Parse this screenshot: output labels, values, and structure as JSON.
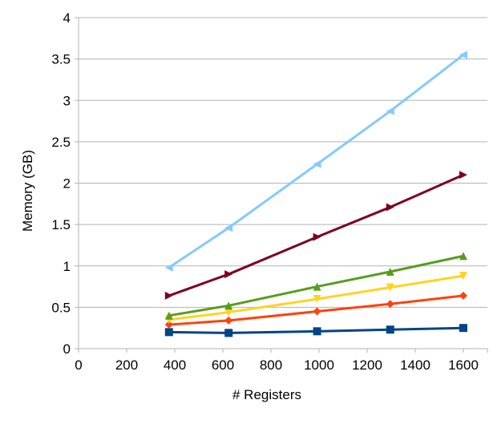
{
  "chart_data": {
    "type": "line",
    "title": "",
    "xlabel": "# Registers",
    "ylabel": "Memory (GB)",
    "xlim": [
      0,
      1700
    ],
    "ylim": [
      0,
      4
    ],
    "xticks": [
      0,
      200,
      400,
      600,
      800,
      1000,
      1200,
      1400,
      1600
    ],
    "yticks": [
      0,
      0.5,
      1,
      1.5,
      2,
      2.5,
      3,
      3.5,
      4
    ],
    "xtick_labels": [
      "0",
      "200",
      "400",
      "600",
      "800",
      "1000",
      "1200",
      "1400",
      "1600"
    ],
    "ytick_labels": [
      "0",
      "0.5",
      "1",
      "1.5",
      "2",
      "2.5",
      "3",
      "3.5",
      "4"
    ],
    "grid": "horizontal",
    "legend": "none",
    "x": [
      376,
      624,
      992,
      1296,
      1600
    ],
    "series": [
      {
        "color": "#004586",
        "marker": "square",
        "values": [
          0.2,
          0.19,
          0.21,
          0.23,
          0.25
        ]
      },
      {
        "color": "#ff420e",
        "marker": "diamond",
        "values": [
          0.29,
          0.34,
          0.45,
          0.54,
          0.64
        ]
      },
      {
        "color": "#ffd320",
        "marker": "triangle-down",
        "values": [
          0.35,
          0.44,
          0.6,
          0.74,
          0.88
        ]
      },
      {
        "color": "#579d1c",
        "marker": "triangle-up",
        "values": [
          0.4,
          0.52,
          0.75,
          0.93,
          1.12
        ]
      },
      {
        "color": "#7e0021",
        "marker": "triangle-right",
        "values": [
          0.64,
          0.9,
          1.35,
          1.71,
          2.1
        ]
      },
      {
        "color": "#83caff",
        "marker": "triangle-left",
        "values": [
          0.98,
          1.46,
          2.23,
          2.87,
          3.55
        ]
      }
    ]
  }
}
